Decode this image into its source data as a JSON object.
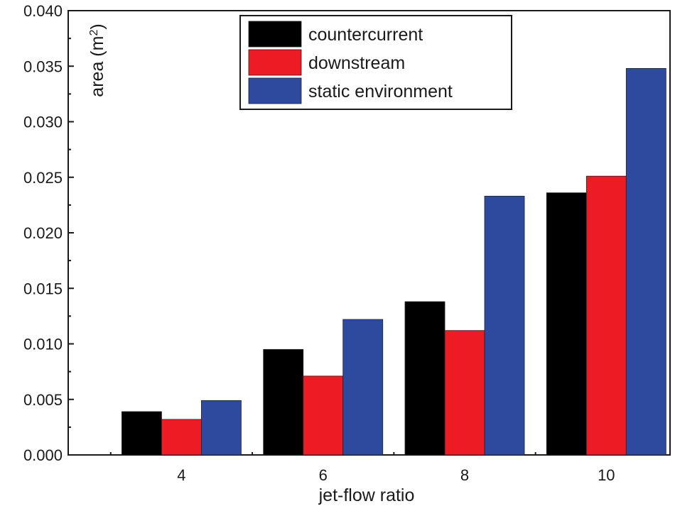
{
  "chart_data": {
    "type": "bar",
    "title": "",
    "xlabel": "jet-flow ratio",
    "ylabel": "area (m",
    "ylabel_sup": "2",
    "ylabel_close": ")",
    "categories": [
      "4",
      "6",
      "8",
      "10"
    ],
    "series": [
      {
        "name": "countercurrent",
        "color": "#000000",
        "values": [
          0.0039,
          0.0095,
          0.0138,
          0.0236
        ]
      },
      {
        "name": "downstream",
        "color": "#ed1c24",
        "values": [
          0.0032,
          0.0071,
          0.0112,
          0.0251
        ]
      },
      {
        "name": "static environment",
        "color": "#2e4a9e",
        "values": [
          0.0049,
          0.0122,
          0.0233,
          0.0348
        ]
      }
    ],
    "ylim": [
      0.0,
      0.04
    ],
    "yticks": [
      "0.000",
      "0.005",
      "0.010",
      "0.015",
      "0.020",
      "0.025",
      "0.030",
      "0.035",
      "0.040"
    ],
    "ytick_values": [
      0.0,
      0.005,
      0.01,
      0.015,
      0.02,
      0.025,
      0.03,
      0.035,
      0.04
    ],
    "legend_position": "top-center",
    "grid": false
  }
}
